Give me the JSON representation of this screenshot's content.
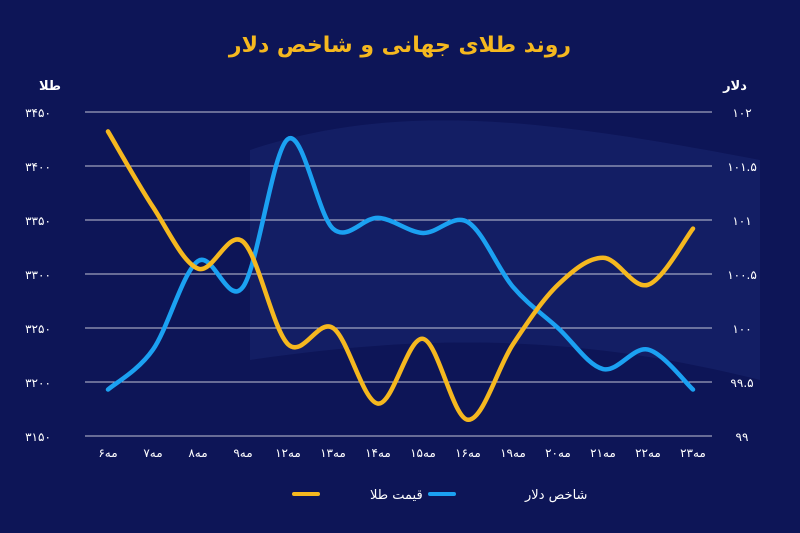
{
  "chart_data": {
    "type": "line",
    "title": "روند طلای جهانی و شاخص دلار",
    "x_labels": [
      "۶مه",
      "۷مه",
      "۸مه",
      "۹مه",
      "۱۲مه",
      "۱۳مه",
      "۱۴مه",
      "۱۵مه",
      "۱۶مه",
      "۱۹مه",
      "۲۰مه",
      "۲۱مه",
      "۲۲مه",
      "۲۳مه"
    ],
    "left_axis": {
      "label": "طلا",
      "ticks": [
        "۳۴۵۰",
        "۳۴۰۰",
        "۳۳۵۰",
        "۳۳۰۰",
        "۳۲۵۰",
        "۳۲۰۰",
        "۳۱۵۰"
      ],
      "range": [
        3150,
        3450
      ]
    },
    "right_axis": {
      "label": "دلار",
      "ticks": [
        "۱۰۲",
        "۱۰۱.۵",
        "۱۰۱",
        "۱۰۰.۵",
        "۱۰۰",
        "۹۹.۵",
        "۹۹"
      ],
      "range": [
        99,
        102
      ]
    },
    "grid": true,
    "legend_position": "bottom",
    "series": [
      {
        "name": "قیمت طلا",
        "axis": "left",
        "color": "#f5b81f",
        "values": [
          3432,
          3362,
          3305,
          3330,
          3235,
          3250,
          3180,
          3240,
          3165,
          3235,
          3290,
          3315,
          3290,
          3342
        ]
      },
      {
        "name": "شاخص دلار",
        "axis": "right",
        "color": "#1ba1f2",
        "values": [
          99.43,
          99.8,
          100.62,
          100.38,
          101.75,
          100.92,
          101.02,
          100.88,
          100.98,
          100.38,
          100.0,
          99.62,
          99.8,
          99.43
        ]
      }
    ]
  }
}
